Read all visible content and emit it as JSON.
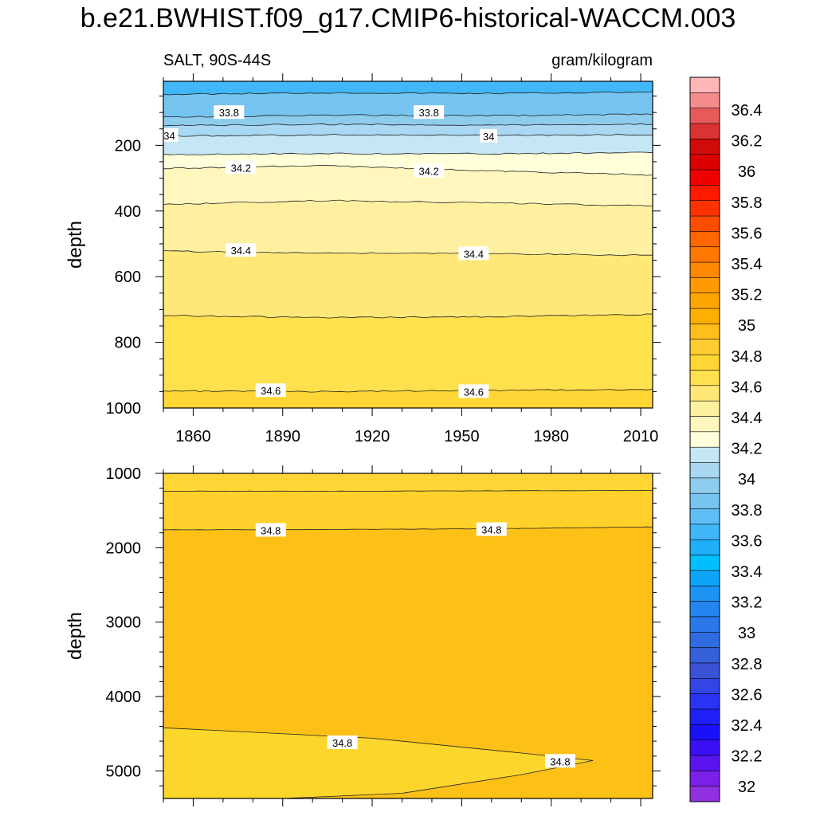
{
  "figure": {
    "title": "b.e21.BWHIST.f09_g17.CMIP6-historical-WACCM.003"
  },
  "chart_data": [
    {
      "type": "heatmap",
      "panel": "upper",
      "left_string": "SALT, 90S-44S",
      "right_string": "gram/kilogram",
      "xlabel": "",
      "ylabel": "depth",
      "xlim": [
        1850,
        2014
      ],
      "ylim": [
        1000,
        5
      ],
      "x_ticks": [
        1860,
        1890,
        1920,
        1950,
        1980,
        2010
      ],
      "y_ticks": [
        200,
        400,
        600,
        800,
        1000
      ],
      "contours": [
        {
          "level": 33.7,
          "depths": [
            45,
            40,
            42,
            38
          ]
        },
        {
          "level": 33.8,
          "depths": [
            115,
            108,
            110,
            105
          ]
        },
        {
          "level": 33.9,
          "depths": [
            140,
            136,
            138,
            135
          ]
        },
        {
          "level": 34.0,
          "depths": [
            172,
            168,
            170,
            168
          ]
        },
        {
          "level": 34.1,
          "depths": [
            228,
            225,
            226,
            222
          ]
        },
        {
          "level": 34.2,
          "depths": [
            270,
            262,
            278,
            290
          ]
        },
        {
          "level": 34.3,
          "depths": [
            380,
            368,
            375,
            385
          ]
        },
        {
          "level": 34.4,
          "depths": [
            522,
            528,
            530,
            535
          ]
        },
        {
          "level": 34.5,
          "depths": [
            718,
            725,
            722,
            715
          ]
        },
        {
          "level": 34.6,
          "depths": [
            948,
            950,
            946,
            944
          ]
        }
      ],
      "contour_labels": [
        {
          "text": "33.8",
          "year": 1872,
          "depth": 100
        },
        {
          "text": "33.8",
          "year": 1939,
          "depth": 100
        },
        {
          "text": "34",
          "year": 1852,
          "depth": 170
        },
        {
          "text": "34",
          "year": 1959,
          "depth": 172
        },
        {
          "text": "34.2",
          "year": 1876,
          "depth": 268
        },
        {
          "text": "34.2",
          "year": 1939,
          "depth": 278
        },
        {
          "text": "34.4",
          "year": 1876,
          "depth": 520
        },
        {
          "text": "34.4",
          "year": 1954,
          "depth": 530
        },
        {
          "text": "34.6",
          "year": 1886,
          "depth": 947
        },
        {
          "text": "34.6",
          "year": 1954,
          "depth": 950
        }
      ]
    },
    {
      "type": "heatmap",
      "panel": "lower",
      "xlabel": "",
      "ylabel": "depth",
      "xlim": [
        1850,
        2014
      ],
      "ylim": [
        5370,
        1000
      ],
      "y_ticks": [
        1000,
        2000,
        3000,
        4000,
        5000
      ],
      "contours": [
        {
          "level": 34.75,
          "depths": [
            1240,
            1240,
            1235,
            1230
          ]
        },
        {
          "level": 34.8,
          "depths": [
            1760,
            1755,
            1745,
            1720
          ]
        }
      ],
      "deep_wedge": {
        "level": 34.8,
        "tip_year": 1994,
        "tip_depth": 4860,
        "upper_edge": [
          [
            1850,
            4420
          ],
          [
            1920,
            4560
          ],
          [
            1970,
            4760
          ],
          [
            1994,
            4860
          ]
        ],
        "lower_edge": [
          [
            1890,
            5370
          ],
          [
            1930,
            5300
          ],
          [
            1970,
            5050
          ],
          [
            1994,
            4860
          ]
        ]
      },
      "contour_labels": [
        {
          "text": "34.8",
          "year": 1886,
          "depth": 1765
        },
        {
          "text": "34.8",
          "year": 1960,
          "depth": 1755
        },
        {
          "text": "34.8",
          "year": 1910,
          "depth": 4620
        },
        {
          "text": "34.8",
          "year": 1983,
          "depth": 4870
        }
      ]
    }
  ],
  "colorbar": {
    "labels": [
      "36.4",
      "36.2",
      "36",
      "35.8",
      "35.6",
      "35.4",
      "35.2",
      "35",
      "34.8",
      "34.6",
      "34.4",
      "34.2",
      "34",
      "33.8",
      "33.6",
      "33.4",
      "33.2",
      "33",
      "32.8",
      "32.6",
      "32.4",
      "32.2",
      "32"
    ],
    "colors": [
      "#FFB6B6",
      "#F58C8C",
      "#E85A5A",
      "#DB3333",
      "#D10A0A",
      "#DC0000",
      "#F00000",
      "#FF1A00",
      "#FF3300",
      "#FF4D00",
      "#FF6600",
      "#FF7700",
      "#FF8800",
      "#FF9A00",
      "#FFA500",
      "#FFAF00",
      "#FFBE1A",
      "#FFCC33",
      "#FFD633",
      "#FFE04D",
      "#FFE878",
      "#FFF0A0",
      "#FFF7BE",
      "#FFFFD9",
      "#C5E6F5",
      "#A8D8F2",
      "#8ECCEE",
      "#76C4F0",
      "#5EBEF5",
      "#40B7F8",
      "#1FB0FA",
      "#00BFFF",
      "#0EA4FA",
      "#1C94F5",
      "#2484F0",
      "#2A78EA",
      "#2F6CE2",
      "#3460DA",
      "#3A52D4",
      "#3245E6",
      "#2A33F2",
      "#1F1FF8",
      "#1A10FA",
      "#3A0FF5",
      "#5A14F0",
      "#7A20E8",
      "#9030E0"
    ]
  }
}
